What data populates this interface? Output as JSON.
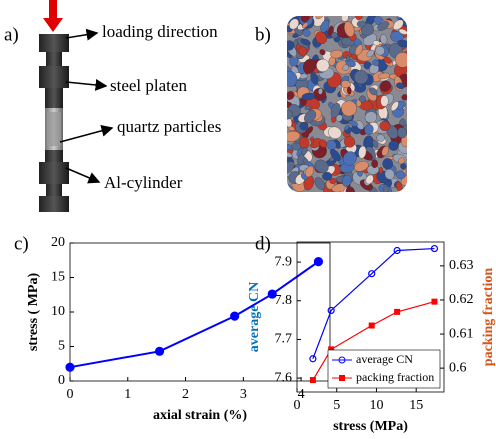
{
  "figure": {
    "panels": [
      "a)",
      "b)",
      "c)",
      "d)"
    ],
    "annotations": [
      "loading direction",
      "steel platen",
      "quartz particles",
      "Al-cylinder"
    ]
  },
  "chart_data": [
    {
      "type": "line",
      "x": [
        0,
        1.55,
        2.85,
        3.5,
        4.3
      ],
      "values": [
        2,
        4.3,
        9.4,
        12.6,
        17.3
      ],
      "color": "#0000ff",
      "x_label": "axial strain (%)",
      "y_label": "stress ( MPa)",
      "xlim": [
        0,
        4.5
      ],
      "xticks": [
        0,
        1,
        2,
        3,
        4
      ],
      "ylim": [
        0,
        20
      ],
      "yticks": [
        0,
        5,
        10,
        15,
        20
      ]
    },
    {
      "type": "line",
      "x": [
        2,
        4.3,
        9.4,
        12.6,
        17.3
      ],
      "series": [
        {
          "name": "average CN",
          "color": "#0000ff",
          "values": [
            7.65,
            7.775,
            7.87,
            7.93,
            7.935
          ]
        },
        {
          "name": "packing fraction",
          "color": "#ff0000",
          "axis": "y2",
          "values": [
            0.5965,
            0.6055,
            0.6125,
            0.6165,
            0.6195
          ]
        }
      ],
      "x_label": "stress (MPa)",
      "y_label": "average CN",
      "y2_label": "packing fraction",
      "y_label_color": "#0072bd",
      "y2_label_color": "#d95319",
      "xlim": [
        0,
        18.5
      ],
      "xticks": [
        0,
        5,
        10,
        15
      ],
      "ylim": [
        7.564,
        7.952
      ],
      "yticks": [
        7.6,
        7.7,
        7.8,
        7.9
      ],
      "y2lim": [
        0.593,
        0.637
      ],
      "y2ticks": [
        0.6,
        0.61,
        0.62,
        0.63
      ],
      "legend": "lower right"
    }
  ]
}
